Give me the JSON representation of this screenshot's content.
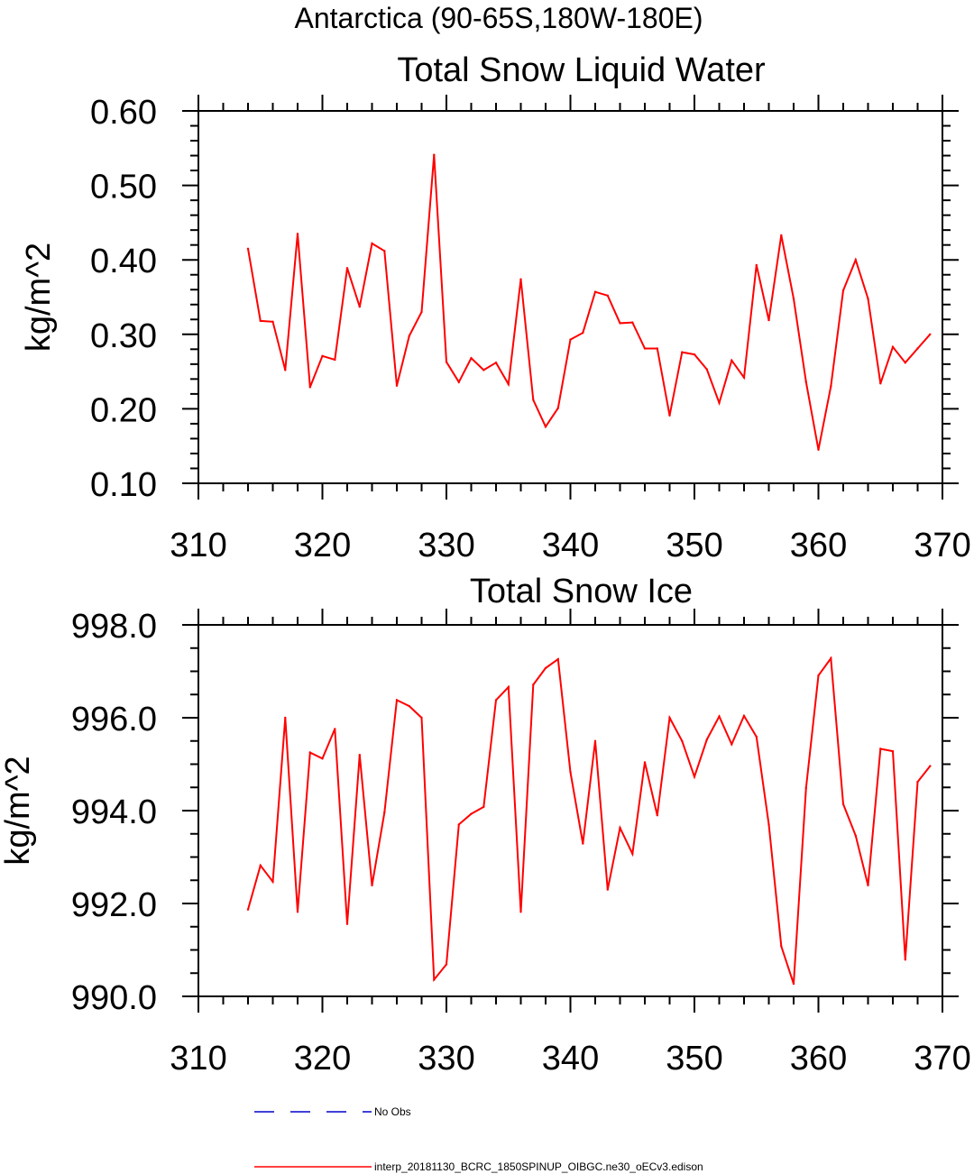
{
  "figure": {
    "region_title": "Antarctica (90-65S,180W-180E)"
  },
  "colors": {
    "model_line": "#ff0000",
    "obs_line": "#0000cc",
    "axes": "#000000"
  },
  "legend": {
    "placement": "bottom",
    "obs_label": "No Obs",
    "model_label": "interp_20181130_BCRC_1850SPINUP_OIBGC.ne30_oECv3.edison"
  },
  "chart_data": [
    {
      "type": "line",
      "title": "Total Snow Liquid Water",
      "xlabel": "",
      "ylabel": "kg/m^2",
      "xlim": [
        310,
        370
      ],
      "ylim": [
        0.1,
        0.6
      ],
      "xticks": [
        "310",
        "320",
        "330",
        "340",
        "350",
        "360",
        "370"
      ],
      "yticks": [
        "0.10",
        "0.20",
        "0.30",
        "0.40",
        "0.50",
        "0.60"
      ],
      "grid": false,
      "x": [
        314,
        315,
        316,
        317,
        318,
        319,
        320,
        321,
        322,
        323,
        324,
        325,
        326,
        327,
        328,
        329,
        330,
        331,
        332,
        333,
        334,
        335,
        336,
        337,
        338,
        339,
        340,
        341,
        342,
        343,
        344,
        345,
        346,
        347,
        348,
        349,
        350,
        351,
        352,
        353,
        354,
        355,
        356,
        357,
        358,
        359,
        360,
        361,
        362,
        363,
        364,
        365,
        366,
        367,
        368,
        369
      ],
      "series": [
        {
          "values": [
            0.415,
            0.318,
            0.317,
            0.252,
            0.435,
            0.229,
            0.271,
            0.266,
            0.389,
            0.337,
            0.422,
            0.412,
            0.231,
            0.298,
            0.33,
            0.541,
            0.263,
            0.236,
            0.268,
            0.252,
            0.262,
            0.233,
            0.374,
            0.212,
            0.176,
            0.201,
            0.293,
            0.302,
            0.357,
            0.352,
            0.315,
            0.316,
            0.281,
            0.281,
            0.191,
            0.276,
            0.273,
            0.253,
            0.208,
            0.265,
            0.242,
            0.393,
            0.319,
            0.433,
            0.348,
            0.236,
            0.145,
            0.23,
            0.359,
            0.4,
            0.348,
            0.234,
            0.283,
            0.262,
            0.281,
            0.3
          ]
        }
      ]
    },
    {
      "type": "line",
      "title": "Total Snow Ice",
      "xlabel": "",
      "ylabel": "kg/m^2",
      "xlim": [
        310,
        370
      ],
      "ylim": [
        990.0,
        998.0
      ],
      "xticks": [
        "310",
        "320",
        "330",
        "340",
        "350",
        "360",
        "370"
      ],
      "yticks": [
        "990.0",
        "992.0",
        "994.0",
        "996.0",
        "998.0"
      ],
      "grid": false,
      "x": [
        314,
        315,
        316,
        317,
        318,
        319,
        320,
        321,
        322,
        323,
        324,
        325,
        326,
        327,
        328,
        329,
        330,
        331,
        332,
        333,
        334,
        335,
        336,
        337,
        338,
        339,
        340,
        341,
        342,
        343,
        344,
        345,
        346,
        347,
        348,
        349,
        350,
        351,
        352,
        353,
        354,
        355,
        356,
        357,
        358,
        359,
        360,
        361,
        362,
        363,
        364,
        365,
        366,
        367,
        368,
        369
      ],
      "series": [
        {
          "values": [
            991.87,
            992.82,
            992.47,
            996.0,
            991.82,
            995.25,
            995.12,
            995.76,
            991.56,
            995.2,
            992.39,
            993.96,
            996.38,
            996.25,
            996.0,
            990.36,
            990.69,
            993.7,
            993.93,
            994.08,
            996.38,
            996.66,
            991.82,
            996.71,
            997.07,
            997.26,
            994.83,
            993.29,
            995.5,
            992.3,
            993.63,
            993.07,
            995.04,
            993.9,
            996.0,
            995.5,
            994.73,
            995.53,
            996.03,
            995.43,
            996.04,
            995.59,
            993.7,
            991.08,
            990.27,
            994.49,
            996.91,
            997.28,
            994.14,
            993.46,
            992.39,
            995.33,
            995.28,
            990.79,
            994.62,
            994.96
          ]
        }
      ]
    }
  ]
}
